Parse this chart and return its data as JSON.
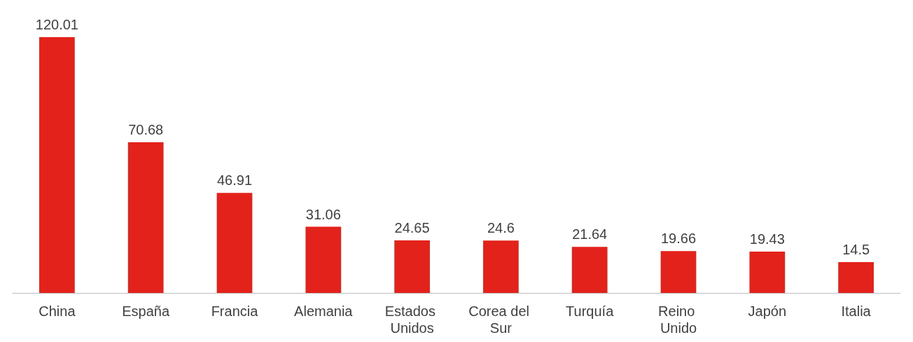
{
  "chart_data": {
    "type": "bar",
    "categories": [
      "China",
      "España",
      "Francia",
      "Alemania",
      "Estados Unidos",
      "Corea del Sur",
      "Turquía",
      "Reino Unido",
      "Japón",
      "Italia"
    ],
    "values": [
      120.01,
      70.68,
      46.91,
      31.06,
      24.65,
      24.6,
      21.64,
      19.66,
      19.43,
      14.5
    ],
    "color": "#e3231b",
    "data_labels": true,
    "tick_labels": "x"
  }
}
